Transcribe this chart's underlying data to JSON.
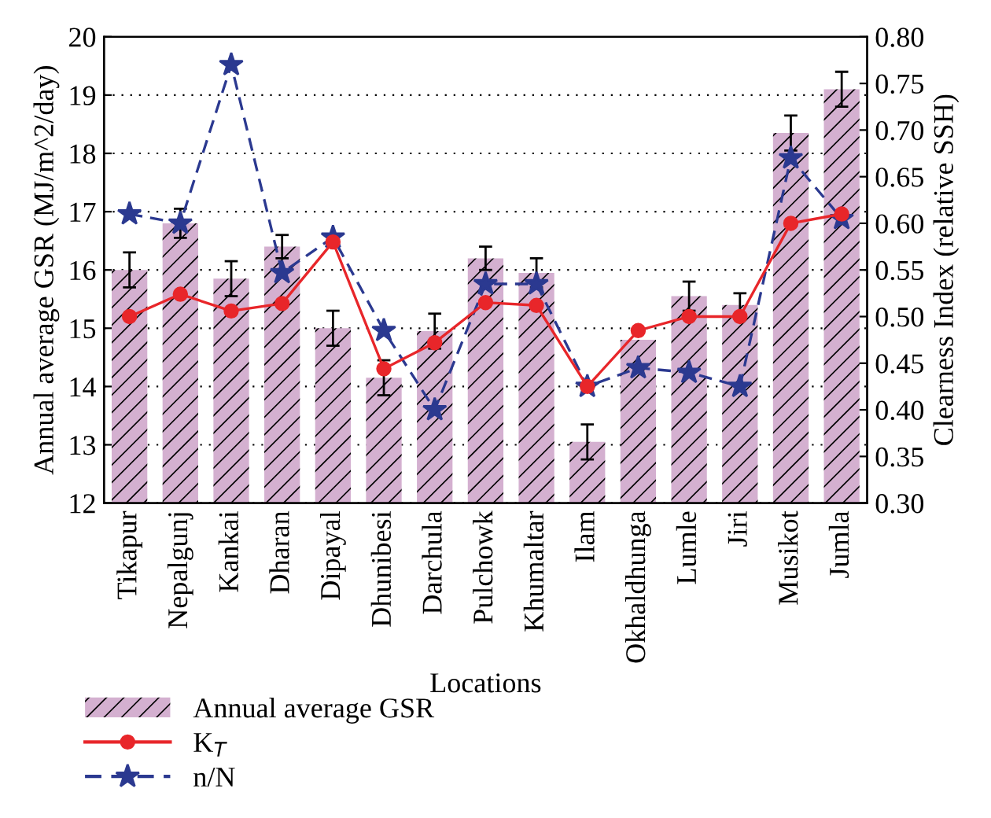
{
  "chart_data": {
    "type": "bar",
    "xlabel": "Locations",
    "ylabel": "Annual average GSR (MJ/m^2/day)",
    "y2label": "Clearness Index (relative SSH)",
    "categories": [
      "Tikapur",
      "Nepalgunj",
      "Kankai",
      "Dharan",
      "Dipayal",
      "Dhunibesi",
      "Darchula",
      "Pulchowk",
      "Khumaltar",
      "Ilam",
      "Okhaldhunga",
      "Lumle",
      "Jiri",
      "Musikot",
      "Jumla"
    ],
    "series": [
      {
        "name": "Annual average GSR",
        "color": "#d4b0d0",
        "values": [
          16.0,
          16.8,
          15.85,
          16.4,
          15.0,
          14.15,
          14.95,
          16.2,
          15.95,
          13.05,
          14.8,
          15.55,
          15.4,
          18.35,
          19.1
        ],
        "errors": [
          0.3,
          0.25,
          0.3,
          0.2,
          0.3,
          0.3,
          0.3,
          0.2,
          0.25,
          0.3,
          null,
          0.25,
          0.2,
          0.3,
          0.3
        ]
      },
      {
        "name": "K$_{T}$",
        "type": "line",
        "axis": "y2",
        "color": "#e8262a",
        "marker": "circle",
        "line_style": "solid",
        "values": [
          0.5,
          0.524,
          0.506,
          0.514,
          0.58,
          0.444,
          0.472,
          0.515,
          0.512,
          0.425,
          0.485,
          0.5,
          0.5,
          0.6,
          0.61
        ]
      },
      {
        "name": "n/N",
        "type": "line",
        "axis": "y2",
        "color": "#2b3990",
        "marker": "star",
        "line_style": "dashed",
        "values": [
          0.61,
          0.6,
          0.77,
          0.547,
          0.585,
          0.485,
          0.4,
          0.535,
          0.535,
          0.425,
          0.445,
          0.44,
          0.425,
          0.67,
          0.605
        ]
      }
    ],
    "ylim": [
      12,
      20
    ],
    "yticks": [
      12,
      13,
      14,
      15,
      16,
      17,
      18,
      19,
      20
    ],
    "y2lim": [
      0.3,
      0.8
    ],
    "y2ticks": [
      {
        "value": 0.3,
        "label": "0.30"
      },
      {
        "value": 0.35,
        "label": "0.35"
      },
      {
        "value": 0.4,
        "label": "0.40"
      },
      {
        "value": 0.45,
        "label": "0.45"
      },
      {
        "value": 0.5,
        "label": "0.50"
      },
      {
        "value": 0.55,
        "label": "0.55"
      },
      {
        "value": 0.6,
        "label": "0.60"
      },
      {
        "value": 0.65,
        "label": "0.65"
      },
      {
        "value": 0.7,
        "label": "0.70"
      },
      {
        "value": 0.75,
        "label": "0.75"
      },
      {
        "value": 0.8,
        "label": "0.80"
      }
    ],
    "grid": "y",
    "legend": "bottom"
  }
}
